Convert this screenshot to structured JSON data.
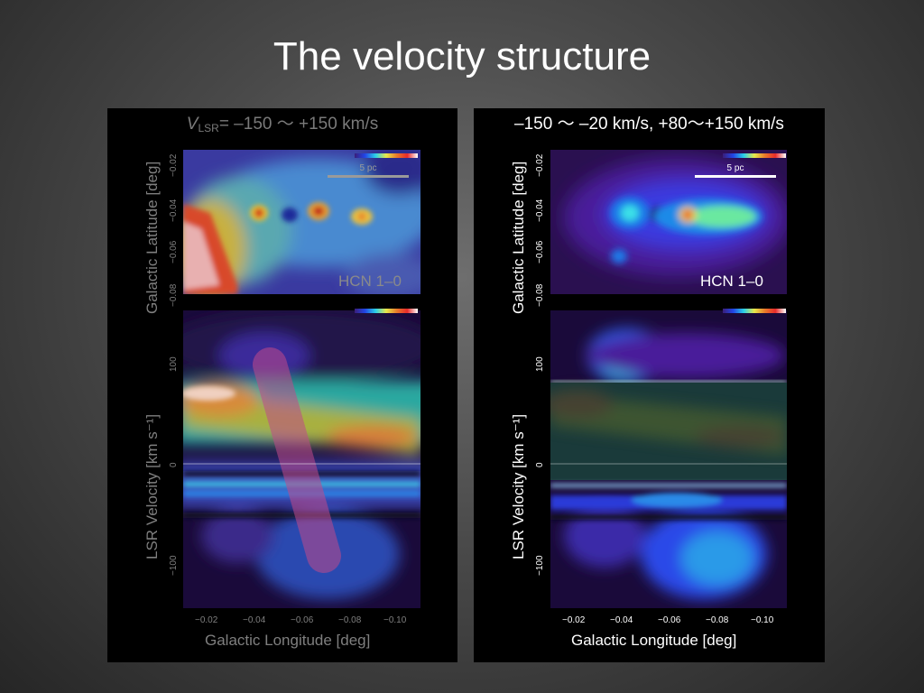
{
  "slide": {
    "title": "The velocity structure"
  },
  "left_panel": {
    "range_caption": {
      "symbol": "V",
      "subscript": "LSR",
      "text": "= –150 〜 +150 km/s"
    },
    "line_label": "HCN 1–0",
    "scale_label": "5 pc",
    "top_map": {
      "ylabel": "Galactic Latitude  [deg]",
      "yticks": [
        "−0.02",
        "−0.04",
        "−0.06",
        "−0.08"
      ]
    },
    "bottom_map": {
      "ylabel": "LSR Velocity  [km s⁻¹]",
      "yticks": [
        "100",
        "0",
        "−100"
      ],
      "xlabel": "Galactic Longitude  [deg]",
      "xticks": [
        "−0.02",
        "−0.04",
        "−0.06",
        "−0.08",
        "−0.10"
      ]
    },
    "colors": {
      "dim_text": "#7f7f7f",
      "highlight_band": "#c04a8a"
    }
  },
  "right_panel": {
    "range_caption": {
      "text": "–150 〜 –20 km/s, +80〜+150 km/s"
    },
    "line_label": "HCN 1–0",
    "scale_label": "5 pc",
    "top_map": {
      "ylabel": "Galactic Latitude  [deg]",
      "yticks": [
        "−0.02",
        "−0.04",
        "−0.06",
        "−0.08"
      ]
    },
    "bottom_map": {
      "ylabel": "LSR Velocity  [km s⁻¹]",
      "yticks": [
        "100",
        "0",
        "−100"
      ],
      "xlabel": "Galactic Longitude  [deg]",
      "xticks": [
        "−0.02",
        "−0.04",
        "−0.06",
        "−0.08",
        "−0.10"
      ]
    },
    "colors": {
      "text": "#ffffff"
    }
  }
}
